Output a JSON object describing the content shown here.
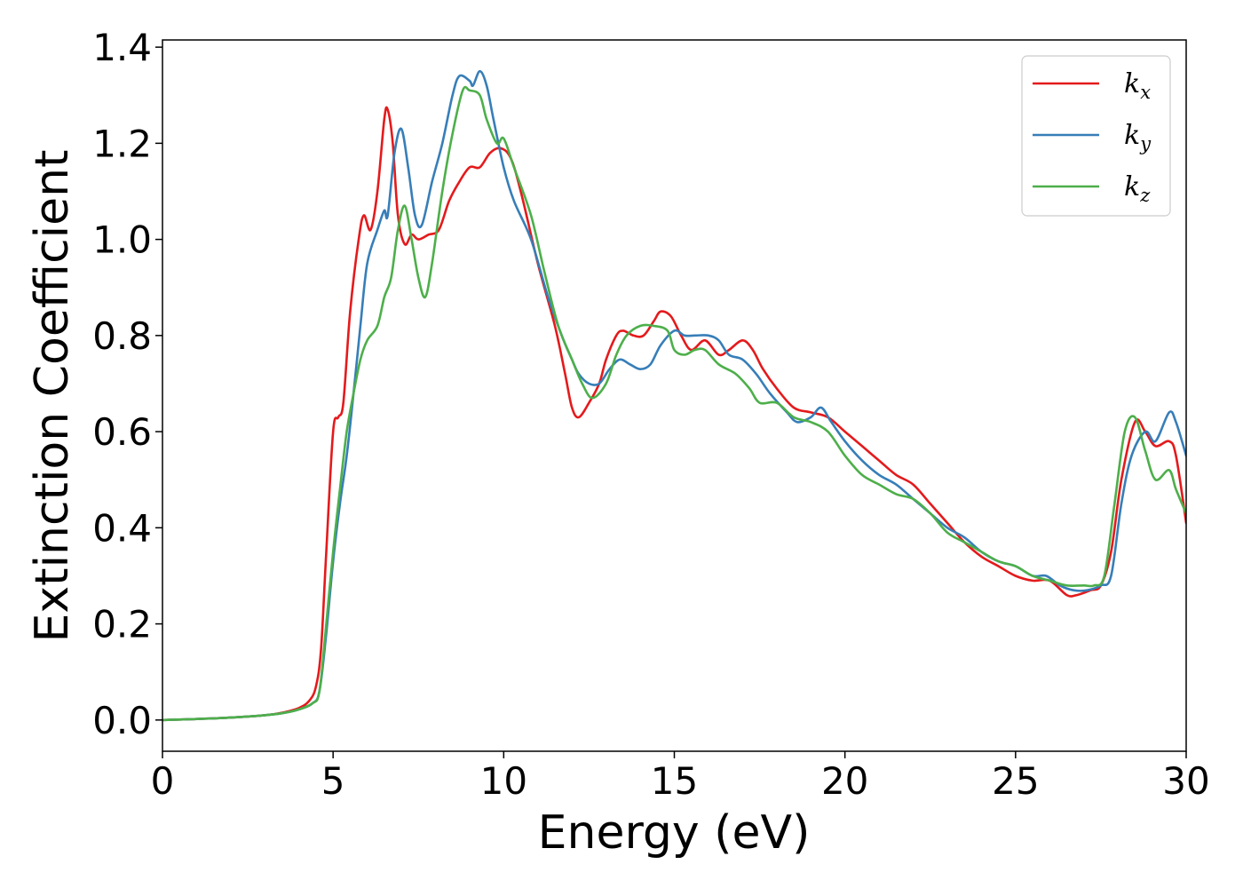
{
  "chart_data": {
    "type": "line",
    "title": "",
    "xlabel": "Energy (eV)",
    "ylabel": "Extinction Coefficient",
    "xlim": [
      0,
      30
    ],
    "ylim": [
      -0.065,
      1.415
    ],
    "xticks": [
      0,
      5,
      10,
      15,
      20,
      25,
      30
    ],
    "yticks": [
      0.0,
      0.2,
      0.4,
      0.6,
      0.8,
      1.0,
      1.2,
      1.4
    ],
    "grid": false,
    "legend_position": "top-right",
    "series": [
      {
        "name": "k",
        "subscript": "x",
        "color": "#e41a1c",
        "points": [
          [
            0,
            0
          ],
          [
            1,
            0.002
          ],
          [
            2,
            0.005
          ],
          [
            3,
            0.01
          ],
          [
            3.5,
            0.015
          ],
          [
            4,
            0.025
          ],
          [
            4.3,
            0.04
          ],
          [
            4.5,
            0.07
          ],
          [
            4.65,
            0.15
          ],
          [
            4.8,
            0.35
          ],
          [
            5,
            0.6
          ],
          [
            5.15,
            0.63
          ],
          [
            5.3,
            0.66
          ],
          [
            5.5,
            0.85
          ],
          [
            5.75,
            1.0
          ],
          [
            5.9,
            1.05
          ],
          [
            6.1,
            1.02
          ],
          [
            6.3,
            1.1
          ],
          [
            6.5,
            1.25
          ],
          [
            6.6,
            1.27
          ],
          [
            6.75,
            1.2
          ],
          [
            6.9,
            1.05
          ],
          [
            7.1,
            0.99
          ],
          [
            7.3,
            1.01
          ],
          [
            7.5,
            1.0
          ],
          [
            7.8,
            1.01
          ],
          [
            8.1,
            1.02
          ],
          [
            8.4,
            1.08
          ],
          [
            8.7,
            1.12
          ],
          [
            9.0,
            1.15
          ],
          [
            9.3,
            1.15
          ],
          [
            9.6,
            1.18
          ],
          [
            9.9,
            1.19
          ],
          [
            10.2,
            1.17
          ],
          [
            10.5,
            1.1
          ],
          [
            11.0,
            0.95
          ],
          [
            11.5,
            0.82
          ],
          [
            11.8,
            0.72
          ],
          [
            12.0,
            0.65
          ],
          [
            12.2,
            0.63
          ],
          [
            12.5,
            0.66
          ],
          [
            12.8,
            0.7
          ],
          [
            13.0,
            0.75
          ],
          [
            13.3,
            0.8
          ],
          [
            13.5,
            0.81
          ],
          [
            13.8,
            0.8
          ],
          [
            14.1,
            0.8
          ],
          [
            14.4,
            0.83
          ],
          [
            14.6,
            0.85
          ],
          [
            14.9,
            0.84
          ],
          [
            15.2,
            0.8
          ],
          [
            15.5,
            0.77
          ],
          [
            15.9,
            0.79
          ],
          [
            16.3,
            0.76
          ],
          [
            16.6,
            0.77
          ],
          [
            17.0,
            0.79
          ],
          [
            17.3,
            0.77
          ],
          [
            17.6,
            0.73
          ],
          [
            18.0,
            0.69
          ],
          [
            18.5,
            0.65
          ],
          [
            19.0,
            0.64
          ],
          [
            19.5,
            0.63
          ],
          [
            20.0,
            0.6
          ],
          [
            20.5,
            0.57
          ],
          [
            21.0,
            0.54
          ],
          [
            21.5,
            0.51
          ],
          [
            22.0,
            0.49
          ],
          [
            22.5,
            0.45
          ],
          [
            23.0,
            0.41
          ],
          [
            23.5,
            0.37
          ],
          [
            24.0,
            0.34
          ],
          [
            24.5,
            0.32
          ],
          [
            25.0,
            0.3
          ],
          [
            25.5,
            0.29
          ],
          [
            26.0,
            0.29
          ],
          [
            26.5,
            0.26
          ],
          [
            26.8,
            0.26
          ],
          [
            27.2,
            0.27
          ],
          [
            27.5,
            0.28
          ],
          [
            27.8,
            0.35
          ],
          [
            28.1,
            0.5
          ],
          [
            28.5,
            0.62
          ],
          [
            28.8,
            0.6
          ],
          [
            29.1,
            0.57
          ],
          [
            29.5,
            0.58
          ],
          [
            29.7,
            0.55
          ],
          [
            30.0,
            0.41
          ]
        ]
      },
      {
        "name": "k",
        "subscript": "y",
        "color": "#377eb8",
        "points": [
          [
            0,
            0
          ],
          [
            1,
            0.002
          ],
          [
            2,
            0.005
          ],
          [
            3,
            0.01
          ],
          [
            3.5,
            0.014
          ],
          [
            4,
            0.022
          ],
          [
            4.4,
            0.035
          ],
          [
            4.6,
            0.06
          ],
          [
            4.8,
            0.18
          ],
          [
            5.0,
            0.33
          ],
          [
            5.2,
            0.45
          ],
          [
            5.4,
            0.55
          ],
          [
            5.6,
            0.68
          ],
          [
            5.8,
            0.82
          ],
          [
            6.0,
            0.95
          ],
          [
            6.3,
            1.02
          ],
          [
            6.5,
            1.06
          ],
          [
            6.6,
            1.05
          ],
          [
            6.8,
            1.18
          ],
          [
            7.0,
            1.23
          ],
          [
            7.2,
            1.15
          ],
          [
            7.4,
            1.05
          ],
          [
            7.6,
            1.03
          ],
          [
            7.9,
            1.12
          ],
          [
            8.2,
            1.2
          ],
          [
            8.5,
            1.3
          ],
          [
            8.7,
            1.34
          ],
          [
            9.0,
            1.33
          ],
          [
            9.1,
            1.32
          ],
          [
            9.3,
            1.35
          ],
          [
            9.5,
            1.32
          ],
          [
            9.7,
            1.25
          ],
          [
            10.0,
            1.15
          ],
          [
            10.3,
            1.08
          ],
          [
            10.8,
            1.0
          ],
          [
            11.3,
            0.88
          ],
          [
            11.7,
            0.8
          ],
          [
            12.0,
            0.75
          ],
          [
            12.2,
            0.72
          ],
          [
            12.5,
            0.7
          ],
          [
            12.8,
            0.7
          ],
          [
            13.1,
            0.73
          ],
          [
            13.4,
            0.75
          ],
          [
            13.7,
            0.74
          ],
          [
            14.0,
            0.73
          ],
          [
            14.3,
            0.74
          ],
          [
            14.6,
            0.78
          ],
          [
            15.0,
            0.81
          ],
          [
            15.3,
            0.8
          ],
          [
            15.6,
            0.8
          ],
          [
            16.0,
            0.8
          ],
          [
            16.3,
            0.79
          ],
          [
            16.6,
            0.76
          ],
          [
            17.0,
            0.75
          ],
          [
            17.4,
            0.72
          ],
          [
            17.8,
            0.68
          ],
          [
            18.3,
            0.64
          ],
          [
            18.6,
            0.62
          ],
          [
            19.0,
            0.63
          ],
          [
            19.3,
            0.65
          ],
          [
            19.6,
            0.62
          ],
          [
            20.0,
            0.58
          ],
          [
            20.5,
            0.54
          ],
          [
            21.0,
            0.51
          ],
          [
            21.5,
            0.49
          ],
          [
            22.0,
            0.46
          ],
          [
            22.5,
            0.43
          ],
          [
            23.0,
            0.4
          ],
          [
            23.5,
            0.38
          ],
          [
            24.0,
            0.35
          ],
          [
            24.5,
            0.33
          ],
          [
            25.0,
            0.32
          ],
          [
            25.5,
            0.3
          ],
          [
            25.9,
            0.3
          ],
          [
            26.3,
            0.28
          ],
          [
            26.7,
            0.27
          ],
          [
            27.1,
            0.27
          ],
          [
            27.5,
            0.28
          ],
          [
            27.8,
            0.3
          ],
          [
            28.1,
            0.45
          ],
          [
            28.4,
            0.55
          ],
          [
            28.8,
            0.6
          ],
          [
            29.1,
            0.58
          ],
          [
            29.5,
            0.64
          ],
          [
            29.7,
            0.62
          ],
          [
            30.0,
            0.55
          ]
        ]
      },
      {
        "name": "k",
        "subscript": "z",
        "color": "#4daf4a",
        "points": [
          [
            0,
            0
          ],
          [
            1,
            0.002
          ],
          [
            2,
            0.005
          ],
          [
            3,
            0.01
          ],
          [
            3.5,
            0.014
          ],
          [
            4,
            0.022
          ],
          [
            4.4,
            0.035
          ],
          [
            4.6,
            0.06
          ],
          [
            4.8,
            0.2
          ],
          [
            5.0,
            0.35
          ],
          [
            5.2,
            0.48
          ],
          [
            5.4,
            0.6
          ],
          [
            5.6,
            0.68
          ],
          [
            5.8,
            0.75
          ],
          [
            6.0,
            0.79
          ],
          [
            6.3,
            0.82
          ],
          [
            6.5,
            0.88
          ],
          [
            6.7,
            0.92
          ],
          [
            6.9,
            1.02
          ],
          [
            7.1,
            1.07
          ],
          [
            7.3,
            1.0
          ],
          [
            7.5,
            0.92
          ],
          [
            7.7,
            0.88
          ],
          [
            7.9,
            0.95
          ],
          [
            8.2,
            1.1
          ],
          [
            8.5,
            1.22
          ],
          [
            8.8,
            1.31
          ],
          [
            9.0,
            1.31
          ],
          [
            9.3,
            1.3
          ],
          [
            9.5,
            1.25
          ],
          [
            9.8,
            1.2
          ],
          [
            10.0,
            1.21
          ],
          [
            10.3,
            1.15
          ],
          [
            10.8,
            1.05
          ],
          [
            11.2,
            0.93
          ],
          [
            11.6,
            0.82
          ],
          [
            12.0,
            0.75
          ],
          [
            12.3,
            0.7
          ],
          [
            12.6,
            0.67
          ],
          [
            13.0,
            0.7
          ],
          [
            13.3,
            0.76
          ],
          [
            13.6,
            0.8
          ],
          [
            14.0,
            0.82
          ],
          [
            14.4,
            0.82
          ],
          [
            14.8,
            0.81
          ],
          [
            15.0,
            0.77
          ],
          [
            15.3,
            0.76
          ],
          [
            15.6,
            0.77
          ],
          [
            15.9,
            0.77
          ],
          [
            16.3,
            0.74
          ],
          [
            16.8,
            0.72
          ],
          [
            17.2,
            0.69
          ],
          [
            17.5,
            0.66
          ],
          [
            18.0,
            0.66
          ],
          [
            18.5,
            0.63
          ],
          [
            19.0,
            0.62
          ],
          [
            19.5,
            0.6
          ],
          [
            20.0,
            0.55
          ],
          [
            20.5,
            0.51
          ],
          [
            21.0,
            0.49
          ],
          [
            21.5,
            0.47
          ],
          [
            22.0,
            0.46
          ],
          [
            22.5,
            0.43
          ],
          [
            23.0,
            0.39
          ],
          [
            23.5,
            0.37
          ],
          [
            24.0,
            0.35
          ],
          [
            24.5,
            0.33
          ],
          [
            25.0,
            0.32
          ],
          [
            25.5,
            0.3
          ],
          [
            26.0,
            0.29
          ],
          [
            26.5,
            0.28
          ],
          [
            27.0,
            0.28
          ],
          [
            27.3,
            0.28
          ],
          [
            27.6,
            0.3
          ],
          [
            27.9,
            0.45
          ],
          [
            28.2,
            0.6
          ],
          [
            28.5,
            0.63
          ],
          [
            28.8,
            0.56
          ],
          [
            29.1,
            0.5
          ],
          [
            29.5,
            0.52
          ],
          [
            29.7,
            0.48
          ],
          [
            30.0,
            0.43
          ]
        ]
      }
    ]
  }
}
